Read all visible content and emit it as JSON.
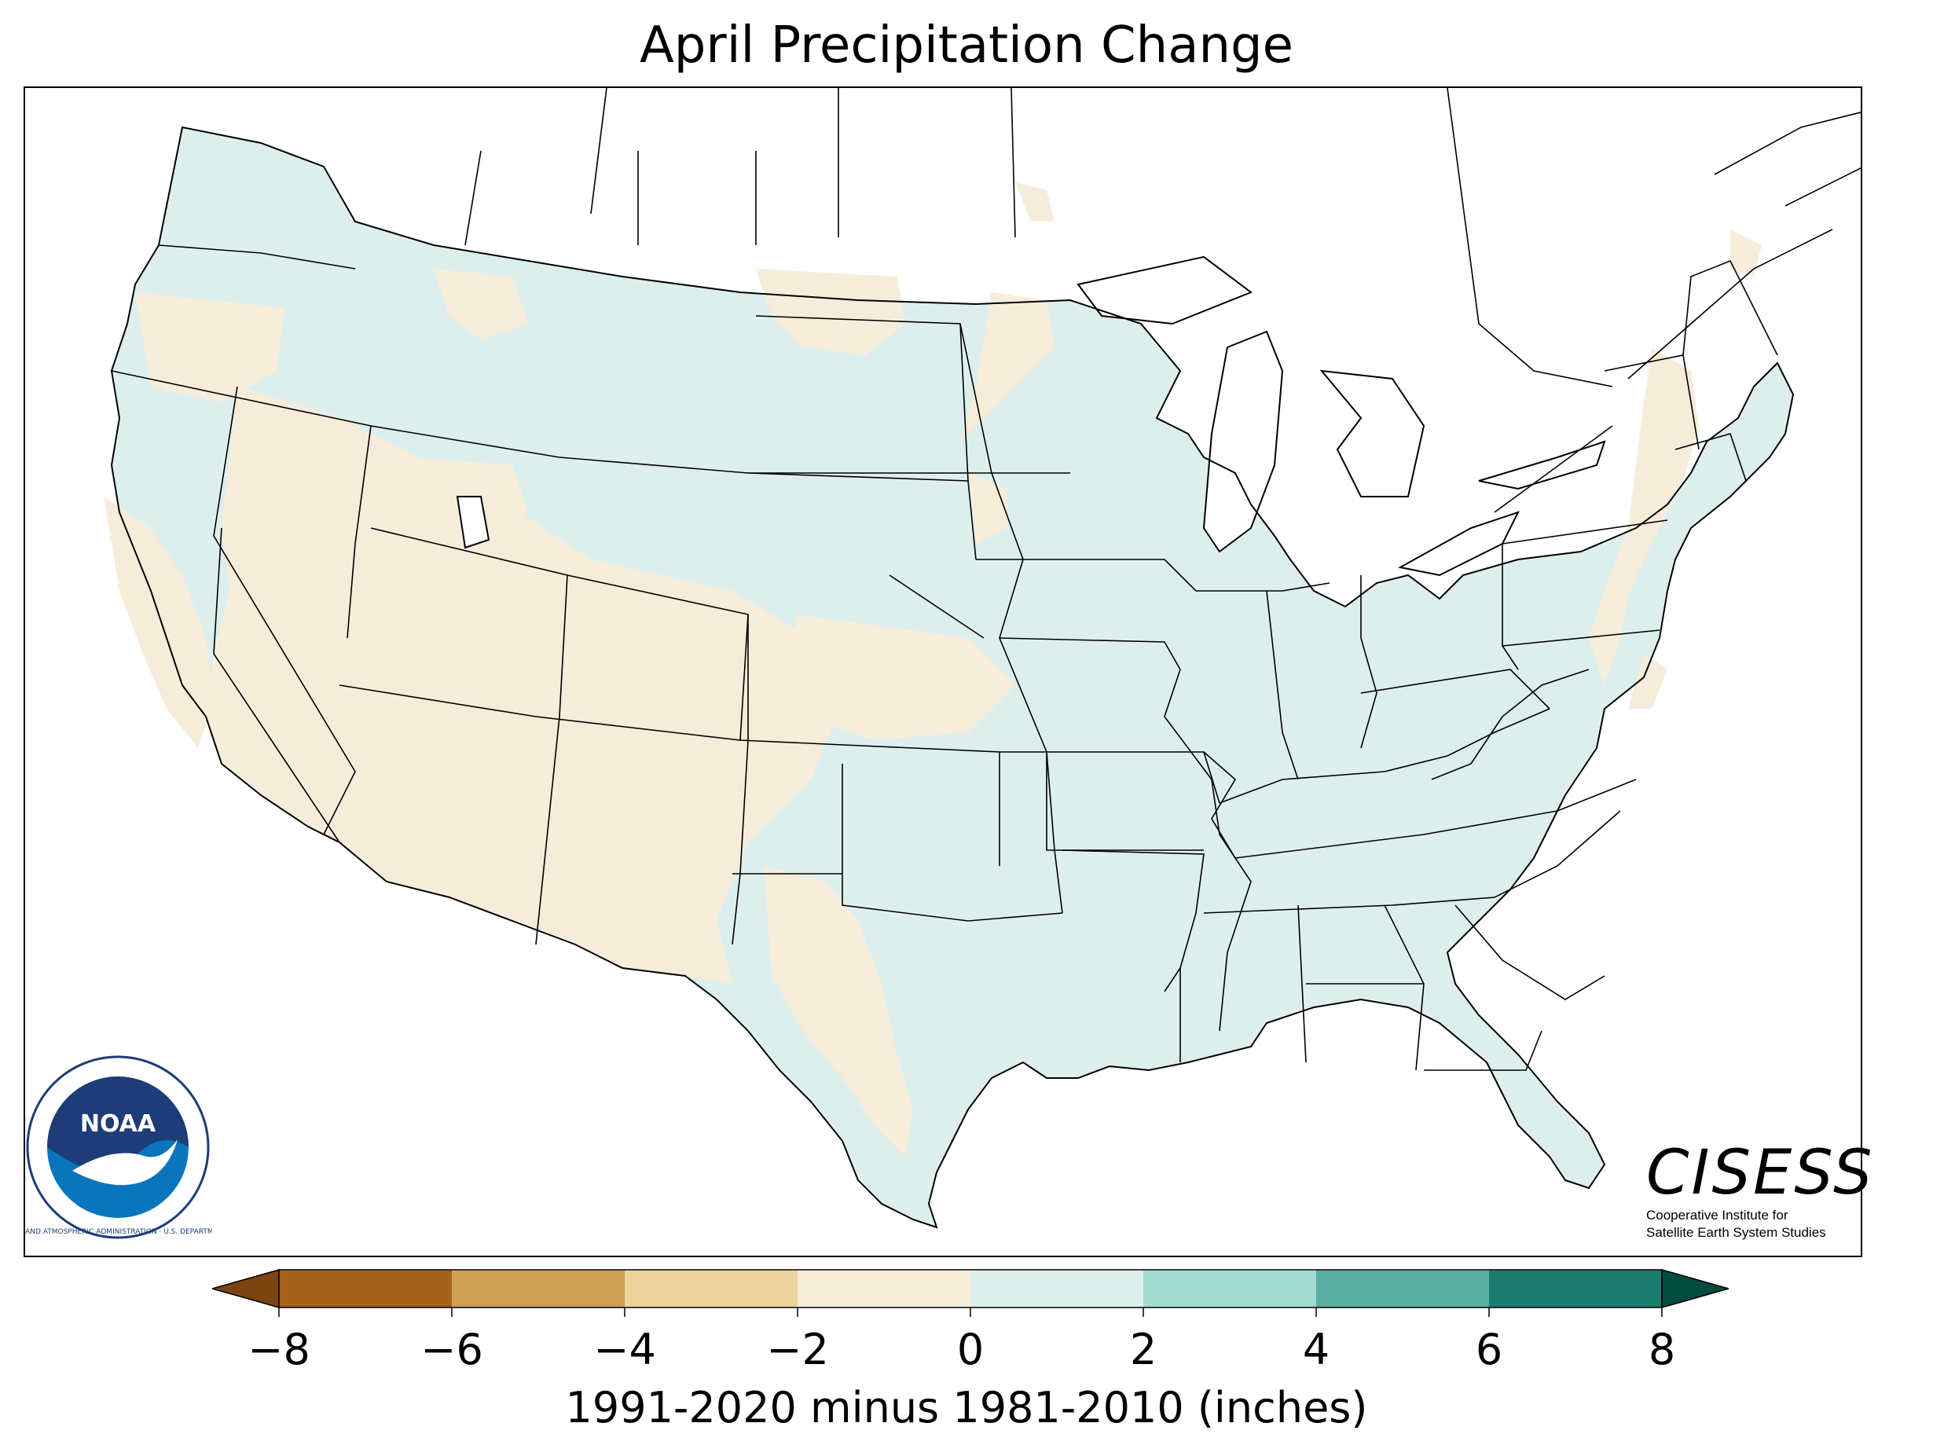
{
  "title": "April Precipitation Change",
  "colorbar": {
    "label": "1991-2020 minus 1981-2010 (inches)",
    "ticks": [
      "−8",
      "−6",
      "−4",
      "−2",
      "0",
      "2",
      "4",
      "6",
      "8"
    ],
    "tick_values": [
      -8,
      -6,
      -4,
      -2,
      0,
      2,
      4,
      6,
      8
    ],
    "bins": [
      {
        "from": -8,
        "to": -6,
        "color": "#a6611a"
      },
      {
        "from": -6,
        "to": -4,
        "color": "#cfa054"
      },
      {
        "from": -4,
        "to": -2,
        "color": "#ecd49c"
      },
      {
        "from": -2,
        "to": 0,
        "color": "#f6ecda"
      },
      {
        "from": 0,
        "to": 2,
        "color": "#ddefec"
      },
      {
        "from": 2,
        "to": 4,
        "color": "#a3ddd2"
      },
      {
        "from": 4,
        "to": 6,
        "color": "#5aafa1"
      },
      {
        "from": 6,
        "to": 8,
        "color": "#1a7d70"
      }
    ],
    "under_color": "#7a4510",
    "over_color": "#004d40"
  },
  "map": {
    "dominant_positive_color": "#ddefec",
    "dominant_negative_color": "#f6ecda"
  },
  "logos": {
    "noaa": {
      "acronym": "NOAA",
      "ring_text": "NATIONAL OCEANIC AND ATMOSPHERIC ADMINISTRATION · U.S. DEPARTMENT OF COMMERCE"
    },
    "cisess": {
      "name": "CISESS",
      "line1": "Cooperative Institute for",
      "line2": "Satellite Earth System Studies"
    }
  }
}
